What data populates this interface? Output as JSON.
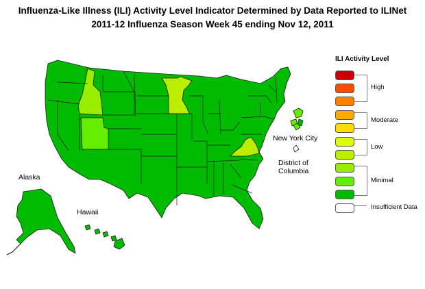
{
  "title_line1": "Influenza-Like Illness (ILI) Activity Level Indicator Determined by Data Reported to ILINet",
  "title_line2": "2011-12  Influenza Season Week  45 ending Nov 12, 2011",
  "map_labels": {
    "alaska": "Alaska",
    "hawaii": "Hawaii",
    "nyc": "New York City",
    "dc_line1": "District of",
    "dc_line2": "Columbia"
  },
  "legend": {
    "title": "ILI Activity Level",
    "levels": [
      {
        "level": 10,
        "color": "#cc0000"
      },
      {
        "level": 9,
        "color": "#ff4d00"
      },
      {
        "level": 8,
        "color": "#ff8000"
      },
      {
        "level": 7,
        "color": "#ffaa00"
      },
      {
        "level": 6,
        "color": "#ffdd00"
      },
      {
        "level": 5,
        "color": "#ddff00"
      },
      {
        "level": 4,
        "color": "#bbee00"
      },
      {
        "level": 3,
        "color": "#99ee00"
      },
      {
        "level": 2,
        "color": "#66ee00"
      },
      {
        "level": 1,
        "color": "#00bb00"
      },
      {
        "level": 0,
        "color": "#ffffff"
      }
    ],
    "groups": {
      "high": "High",
      "moderate": "Moderate",
      "low": "Low",
      "minimal": "Minimal",
      "insufficient": "Insufficient Data"
    }
  },
  "state_levels": {
    "default_minimal_level1": "#00bb00",
    "Idaho": 3,
    "Utah": 2,
    "Minnesota": 4,
    "Virginia": 4,
    "Massachusetts": 2,
    "New York City": 2
  }
}
